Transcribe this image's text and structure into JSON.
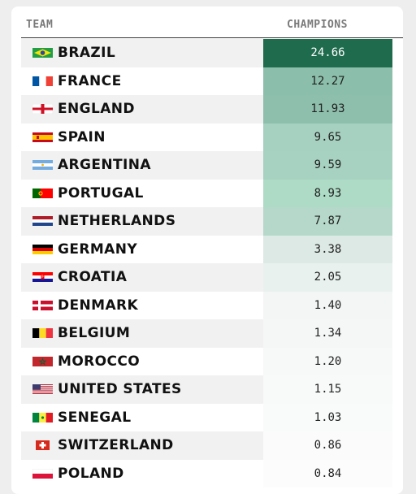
{
  "header": {
    "team_label": "TEAM",
    "champions_label": "CHAMPIONS"
  },
  "rows": [
    {
      "name": "BRAZIL",
      "value": "24.66",
      "flag": "brazil-flag-icon",
      "cell_color": "#1e6b4e",
      "dark": true
    },
    {
      "name": "FRANCE",
      "value": "12.27",
      "flag": "france-flag-icon",
      "cell_color": "#8bbfab"
    },
    {
      "name": "ENGLAND",
      "value": "11.93",
      "flag": "england-flag-icon",
      "cell_color": "#8ebfad"
    },
    {
      "name": "SPAIN",
      "value": "9.65",
      "flag": "spain-flag-icon",
      "cell_color": "#a6d0c0"
    },
    {
      "name": "ARGENTINA",
      "value": "9.59",
      "flag": "argentina-flag-icon",
      "cell_color": "#a7d1c1"
    },
    {
      "name": "PORTUGAL",
      "value": "8.93",
      "flag": "portugal-flag-icon",
      "cell_color": "#addbc6"
    },
    {
      "name": "NETHERLANDS",
      "value": "7.87",
      "flag": "netherlands-flag-icon",
      "cell_color": "#b5d8ca"
    },
    {
      "name": "GERMANY",
      "value": "3.38",
      "flag": "germany-flag-icon",
      "cell_color": "#dde9e4"
    },
    {
      "name": "CROATIA",
      "value": "2.05",
      "flag": "croatia-flag-icon",
      "cell_color": "#e8f1ed"
    },
    {
      "name": "DENMARK",
      "value": "1.40",
      "flag": "denmark-flag-icon",
      "cell_color": "#f3f6f5"
    },
    {
      "name": "BELGIUM",
      "value": "1.34",
      "flag": "belgium-flag-icon",
      "cell_color": "#f5f7f6"
    },
    {
      "name": "MOROCCO",
      "value": "1.20",
      "flag": "morocco-flag-icon",
      "cell_color": "#f7f8f8"
    },
    {
      "name": "UNITED STATES",
      "value": "1.15",
      "flag": "usa-flag-icon",
      "cell_color": "#f8f9f9"
    },
    {
      "name": "SENEGAL",
      "value": "1.03",
      "flag": "senegal-flag-icon",
      "cell_color": "#f9fafa"
    },
    {
      "name": "SWITZERLAND",
      "value": "0.86",
      "flag": "switzerland-flag-icon",
      "cell_color": "#fbfbfb"
    },
    {
      "name": "POLAND",
      "value": "0.84",
      "flag": "poland-flag-icon",
      "cell_color": "#fcfcfc"
    }
  ]
}
